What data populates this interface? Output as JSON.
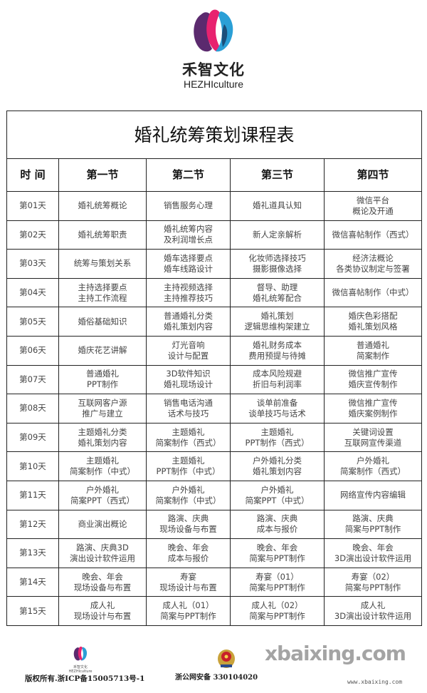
{
  "brand": {
    "name_cn": "禾智文化",
    "name_en": "HEZHIculture",
    "colors": {
      "pink": "#e8226f",
      "blue": "#2a9fd6",
      "purple": "#5b2a6e"
    }
  },
  "table": {
    "title": "婚礼统筹策划课程表",
    "headers": [
      "时 间",
      "第一节",
      "第二节",
      "第三节",
      "第四节"
    ],
    "rows": [
      {
        "day": "第01天",
        "cells": [
          [
            "婚礼统筹概论"
          ],
          [
            "销售服务心理"
          ],
          [
            "婚礼道具认知"
          ],
          [
            "微信平台",
            "概论及开通"
          ]
        ]
      },
      {
        "day": "第02天",
        "cells": [
          [
            "婚礼统筹职责"
          ],
          [
            "婚礼统筹内容",
            "及利润增长点"
          ],
          [
            "新人定亲解析"
          ],
          [
            "微信喜帖制作（西式）"
          ]
        ]
      },
      {
        "day": "第03天",
        "cells": [
          [
            "统筹与策划关系"
          ],
          [
            "婚车选择要点",
            "婚车线路设计"
          ],
          [
            "化妆师选择技巧",
            "摄影摄像选择"
          ],
          [
            "经济法概论",
            "各类协议制定与签署"
          ]
        ]
      },
      {
        "day": "第04天",
        "cells": [
          [
            "主持选择要点",
            "主持工作流程"
          ],
          [
            "主持视频选择",
            "主持推荐技巧"
          ],
          [
            "督导、助理",
            "婚礼统筹配合"
          ],
          [
            "微信喜帖制作（中式）"
          ]
        ]
      },
      {
        "day": "第05天",
        "cells": [
          [
            "婚俗基础知识"
          ],
          [
            "普通婚礼分类",
            "婚礼策划内容"
          ],
          [
            "婚礼策划",
            "逻辑思维构架建立"
          ],
          [
            "婚庆色彩搭配",
            "婚礼策划风格"
          ]
        ]
      },
      {
        "day": "第06天",
        "cells": [
          [
            "婚庆花艺讲解"
          ],
          [
            "灯光音响",
            "设计与配置"
          ],
          [
            "婚礼财务成本",
            "费用预提与待摊"
          ],
          [
            "普通婚礼",
            "简案制作"
          ]
        ]
      },
      {
        "day": "第07天",
        "cells": [
          [
            "普通婚礼",
            "PPT制作"
          ],
          [
            "3D软件知识",
            "婚礼现场设计"
          ],
          [
            "成本风险规避",
            "折旧与利润率"
          ],
          [
            "微信推广宣传",
            "婚庆宣传制作"
          ]
        ]
      },
      {
        "day": "第08天",
        "cells": [
          [
            "互联网客户源",
            "推广与建立"
          ],
          [
            "销售电话沟通",
            "话术与技巧"
          ],
          [
            "谈单前准备",
            "谈单技巧与话术"
          ],
          [
            "微信推广宣传",
            "婚庆案例制作"
          ]
        ]
      },
      {
        "day": "第09天",
        "cells": [
          [
            "主题婚礼分类",
            "婚礼策划内容"
          ],
          [
            "主题婚礼",
            "简案制作（西式）"
          ],
          [
            "主题婚礼",
            "PPT制作（西式）"
          ],
          [
            "关键词设置",
            "互联网宣传渠道"
          ]
        ]
      },
      {
        "day": "第10天",
        "cells": [
          [
            "主题婚礼",
            "简案制作（中式）"
          ],
          [
            "主题婚礼",
            "PPT制作（中式）"
          ],
          [
            "户外婚礼分类",
            "婚礼策划内容"
          ],
          [
            "户外婚礼",
            "简案制作（西式）"
          ]
        ]
      },
      {
        "day": "第11天",
        "cells": [
          [
            "户外婚礼",
            "简案PPT（西式）"
          ],
          [
            "户外婚礼",
            "简案制作（中式）"
          ],
          [
            "户外婚礼",
            "简案PPT（中式）"
          ],
          [
            "网络宣传内容编辑"
          ]
        ]
      },
      {
        "day": "第12天",
        "cells": [
          [
            "商业演出概论"
          ],
          [
            "路演、庆典",
            "现场设备与布置"
          ],
          [
            "路演、庆典",
            "成本与报价"
          ],
          [
            "路演、庆典",
            "简案与PPT制作"
          ]
        ]
      },
      {
        "day": "第13天",
        "cells": [
          [
            "路演、庆典3D",
            "演出设计软件运用"
          ],
          [
            "晚会、年会",
            "成本与报价"
          ],
          [
            "晚会、年会",
            "简案与PPT制作"
          ],
          [
            "晚会、年会",
            "3D演出设计软件运用"
          ]
        ]
      },
      {
        "day": "第14天",
        "cells": [
          [
            "晚会、年会",
            "现场设备与布置"
          ],
          [
            "寿宴",
            "现场设计与布置"
          ],
          [
            "寿宴（01）",
            "简案与PPT制作"
          ],
          [
            "寿宴（02）",
            "简案与PPT制作"
          ]
        ]
      },
      {
        "day": "第15天",
        "cells": [
          [
            "成人礼",
            "现场设计与布置"
          ],
          [
            "成人礼（01）",
            "简案与PPT制作"
          ],
          [
            "成人礼（02）",
            "简案与PPT制作"
          ],
          [
            "成人礼",
            "3D演出设计软件运用"
          ]
        ]
      }
    ]
  },
  "footer": {
    "logo_cn": "禾智文化",
    "logo_en": "HEZHIculture",
    "copyright": "版权所有.浙ICP备15005713号-1",
    "beian": "浙公网安备 330104020",
    "police_icon": "police-emblem-icon"
  },
  "watermark": {
    "text": "xbaixing.com",
    "url": "www.xbaixing.com"
  }
}
